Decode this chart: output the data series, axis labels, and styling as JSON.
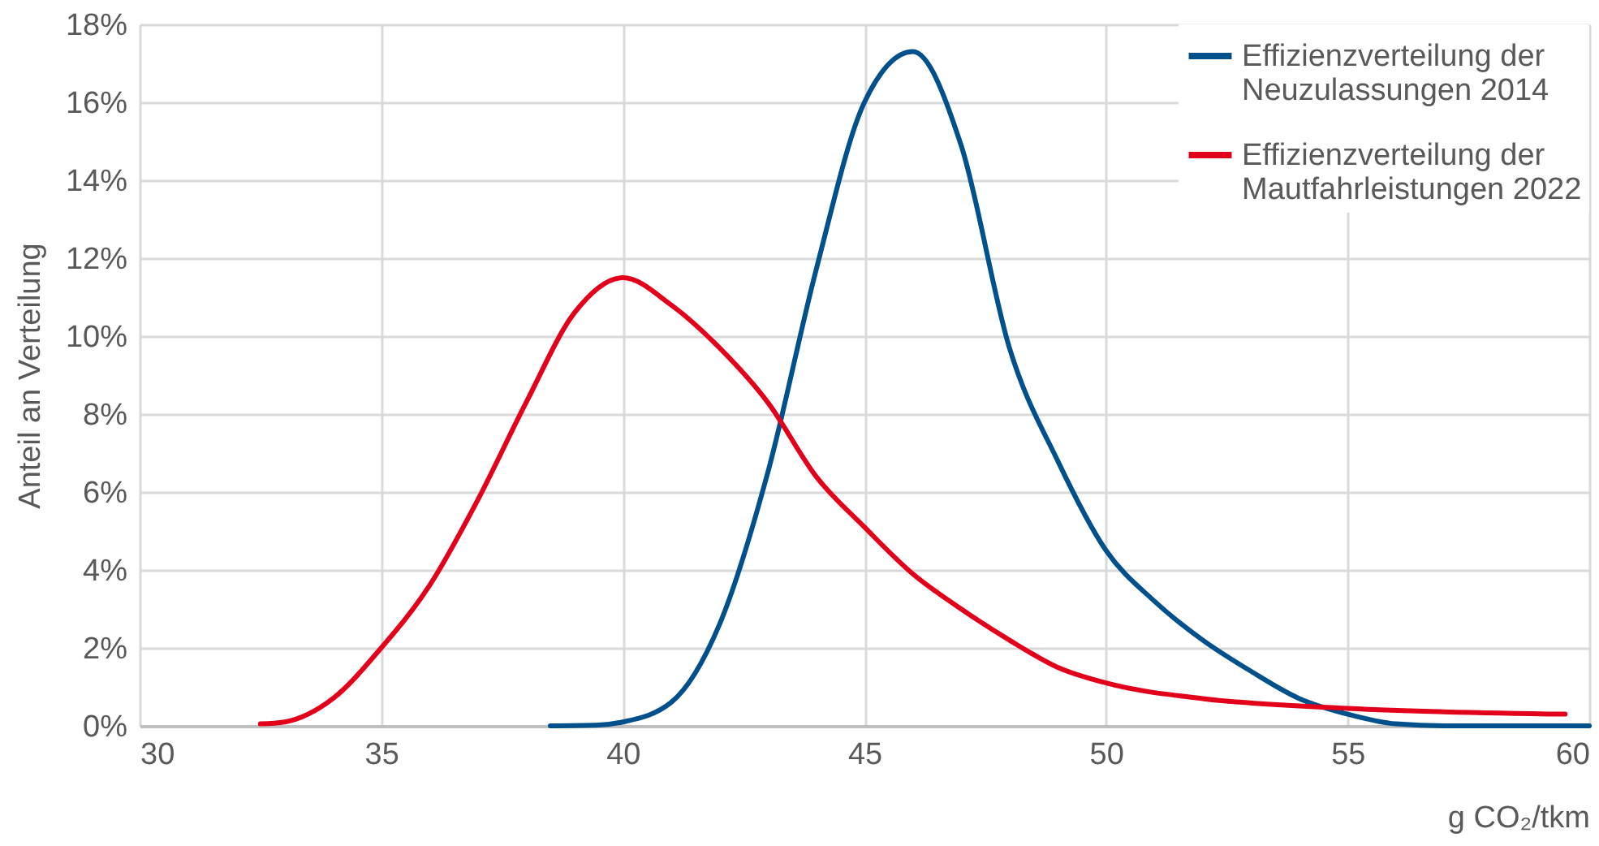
{
  "chart_data": {
    "type": "line",
    "xlabel": "g CO₂/tkm",
    "ylabel": "Anteil an Verteilung",
    "series": [
      {
        "name": "Effizienzverteilung der Neuzulassungen 2014",
        "color": "#00508c",
        "x": [
          38.5,
          39.5,
          40,
          41,
          42,
          43,
          44,
          45,
          46,
          47,
          48,
          49,
          50,
          51,
          52,
          53,
          54,
          55,
          56,
          57,
          60
        ],
        "values": [
          0,
          0.02,
          0.1,
          0.6,
          2.6,
          6.5,
          11.7,
          16,
          17.3,
          14.9,
          9.7,
          6.8,
          4.5,
          3.2,
          2.2,
          1.4,
          0.7,
          0.3,
          0.05,
          0,
          0
        ]
      },
      {
        "name": "Effizienzverteilung der Mautfahrleistungen 2022",
        "color": "#e2001a",
        "x": [
          32.5,
          33,
          34,
          35,
          36,
          37,
          38,
          39,
          40,
          41,
          42,
          43,
          44,
          45,
          46,
          47,
          48,
          49,
          50,
          52,
          55,
          59.5
        ],
        "values": [
          0.05,
          0.1,
          0.7,
          2.0,
          3.6,
          5.8,
          8.3,
          10.6,
          11.5,
          10.8,
          9.7,
          8.3,
          6.4,
          5.1,
          3.9,
          3.0,
          2.2,
          1.5,
          1.1,
          0.7,
          0.45,
          0.3
        ]
      }
    ],
    "xlim": [
      30,
      60
    ],
    "xticks": [
      30,
      35,
      40,
      45,
      50,
      55,
      60
    ],
    "ylim": [
      0,
      18
    ],
    "yticks": [
      {
        "value": 0,
        "label": "0%"
      },
      {
        "value": 2,
        "label": "2%"
      },
      {
        "value": 4,
        "label": "4%"
      },
      {
        "value": 6,
        "label": "6%"
      },
      {
        "value": 8,
        "label": "8%"
      },
      {
        "value": 10,
        "label": "10%"
      },
      {
        "value": 12,
        "label": "12%"
      },
      {
        "value": 14,
        "label": "14%"
      },
      {
        "value": 16,
        "label": "16%"
      },
      {
        "value": 18,
        "label": "18%"
      }
    ],
    "grid": true,
    "legend": "top right",
    "line_style": "solid",
    "marker": "none"
  }
}
